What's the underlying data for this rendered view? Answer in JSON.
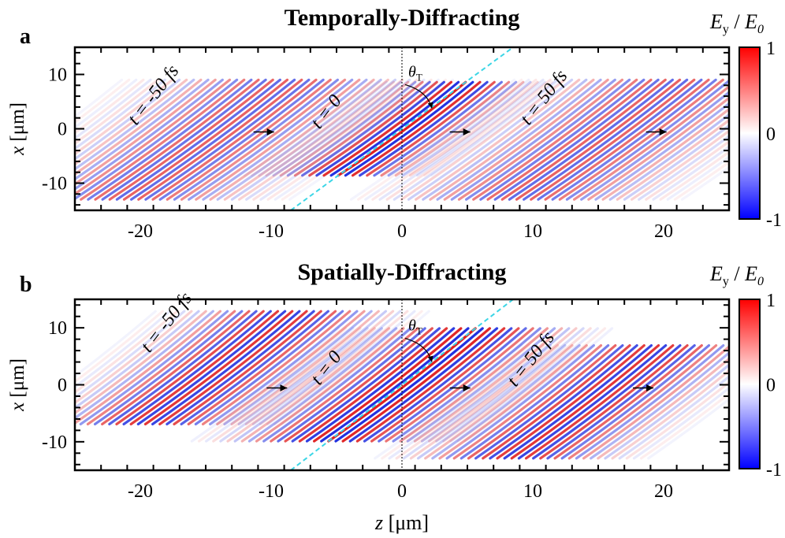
{
  "figure": {
    "xlabel": "z [μm]",
    "colorbar_label": {
      "main": "E",
      "sub": "y",
      "slash": " / ",
      "main2": "E",
      "sub2": "0"
    }
  },
  "chart_data": [
    {
      "type": "heatmap",
      "panel_letter": "a",
      "title": "Temporally-Diffracting",
      "xlabel": "z [μm]",
      "ylabel": "x [μm]",
      "xlim": [
        -25,
        25
      ],
      "ylim": [
        -15,
        15
      ],
      "x_ticks": [
        -20,
        -10,
        0,
        10,
        20
      ],
      "y_ticks": [
        -10,
        0,
        10
      ],
      "colorbar": {
        "label": "Ey / E0",
        "min": -1,
        "max": 1,
        "ticks": [
          1,
          0,
          -1
        ],
        "colors": [
          "#0000ff",
          "#ffffff",
          "#ff0000"
        ]
      },
      "tilt_angle_label": "θT",
      "guide_line": {
        "color": "#3cd6e6",
        "from": [
          -8.5,
          -15
        ],
        "to": [
          8.5,
          15
        ]
      },
      "vertical_reference_z": 0,
      "pulses": [
        {
          "label": "t = -50 fs",
          "center_z": -15,
          "center_x": -2,
          "width": "wide",
          "peak": 0.7
        },
        {
          "label": "t = 0",
          "center_z": 0,
          "center_x": 0,
          "width": "narrow",
          "peak": 1.0
        },
        {
          "label": "t = 50 fs",
          "center_z": 15,
          "center_x": -2,
          "width": "wide",
          "peak": 0.7
        }
      ]
    },
    {
      "type": "heatmap",
      "panel_letter": "b",
      "title": "Spatially-Diffracting",
      "xlabel": "z [μm]",
      "ylabel": "x [μm]",
      "xlim": [
        -25,
        25
      ],
      "ylim": [
        -15,
        15
      ],
      "x_ticks": [
        -20,
        -10,
        0,
        10,
        20
      ],
      "y_ticks": [
        -10,
        0,
        10
      ],
      "colorbar": {
        "label": "Ey / E0",
        "min": -1,
        "max": 1,
        "ticks": [
          1,
          0,
          -1
        ],
        "colors": [
          "#0000ff",
          "#ffffff",
          "#ff0000"
        ]
      },
      "tilt_angle_label": "θT",
      "guide_line": {
        "color": "#3cd6e6",
        "from": [
          -8.5,
          -15
        ],
        "to": [
          8.5,
          15
        ]
      },
      "vertical_reference_z": 0,
      "pulses": [
        {
          "label": "t = -50 fs",
          "center_z": -14,
          "center_x": 3,
          "width": "medium",
          "peak": 0.9
        },
        {
          "label": "t = 0",
          "center_z": 0,
          "center_x": 0,
          "width": "medium",
          "peak": 1.0
        },
        {
          "label": "t = 50 fs",
          "center_z": 14,
          "center_x": -3,
          "width": "medium",
          "peak": 0.9
        }
      ]
    }
  ]
}
